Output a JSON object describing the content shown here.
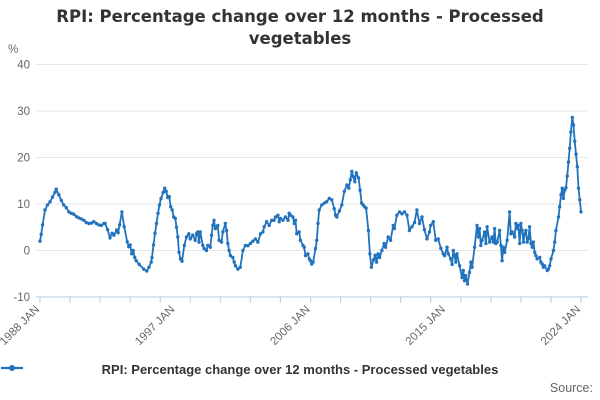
{
  "title": {
    "text": "RPI: Percentage change over 12 months - Processed vegetables"
  },
  "legend": {
    "label": "RPI: Percentage change over 12 months - Processed vegetables"
  },
  "source": {
    "label": "Source:"
  },
  "colors": {
    "line": "#2073bc",
    "grid": "#e6e6e6",
    "axis": "#c3d3e4",
    "title_text": "#333333",
    "label_text": "#666666"
  },
  "y_axis": {
    "unit": "%",
    "ticks": [
      40,
      30,
      20,
      10,
      0,
      -10
    ],
    "min": -10,
    "max": 40
  },
  "x_axis": {
    "labels": [
      "1988 JAN",
      "1997 JAN",
      "2006 JAN",
      "2015 JAN",
      "2024 JAN"
    ],
    "label_years": [
      1988,
      1997,
      2006,
      2015,
      2024
    ],
    "minor_tick_step_years": 2,
    "start_year": 1988,
    "end_year": 2024
  },
  "chart_data": {
    "type": "line",
    "title": "RPI: Percentage change over 12 months - Processed vegetables",
    "xlabel": "",
    "ylabel": "%",
    "ylim": [
      -10,
      40
    ],
    "xlim": [
      1988,
      2024.3
    ],
    "grid": "horizontal",
    "legend_position": "bottom",
    "series_name": "RPI: Percentage change over 12 months - Processed vegetables",
    "points": [
      [
        1988.0,
        2.0
      ],
      [
        1988.08,
        3.5
      ],
      [
        1988.17,
        5.5
      ],
      [
        1988.33,
        8.7
      ],
      [
        1988.5,
        9.8
      ],
      [
        1988.67,
        10.5
      ],
      [
        1988.83,
        11.5
      ],
      [
        1989.0,
        12.5
      ],
      [
        1989.08,
        13.2
      ],
      [
        1989.25,
        12.0
      ],
      [
        1989.42,
        10.8
      ],
      [
        1989.58,
        9.8
      ],
      [
        1989.75,
        9.2
      ],
      [
        1989.92,
        8.3
      ],
      [
        1990.08,
        8.0
      ],
      [
        1990.25,
        7.8
      ],
      [
        1990.42,
        7.3
      ],
      [
        1990.58,
        7.0
      ],
      [
        1990.75,
        6.8
      ],
      [
        1990.92,
        6.5
      ],
      [
        1991.08,
        6.0
      ],
      [
        1991.25,
        5.8
      ],
      [
        1991.42,
        5.9
      ],
      [
        1991.58,
        6.2
      ],
      [
        1991.75,
        5.8
      ],
      [
        1991.92,
        5.5
      ],
      [
        1992.08,
        5.4
      ],
      [
        1992.25,
        5.8
      ],
      [
        1992.33,
        5.8
      ],
      [
        1992.5,
        4.5
      ],
      [
        1992.66,
        2.7
      ],
      [
        1992.8,
        3.7
      ],
      [
        1992.92,
        3.3
      ],
      [
        1993.1,
        4.4
      ],
      [
        1993.2,
        3.8
      ],
      [
        1993.3,
        5.5
      ],
      [
        1993.45,
        8.3
      ],
      [
        1993.6,
        5.1
      ],
      [
        1993.8,
        1.9
      ],
      [
        1993.9,
        0.8
      ],
      [
        1994.0,
        1.2
      ],
      [
        1994.1,
        -0.7
      ],
      [
        1994.2,
        0.0
      ],
      [
        1994.3,
        -1.5
      ],
      [
        1994.4,
        -2.2
      ],
      [
        1994.6,
        -3.0
      ],
      [
        1994.9,
        -4.0
      ],
      [
        1995.1,
        -4.4
      ],
      [
        1995.25,
        -3.6
      ],
      [
        1995.4,
        -2.5
      ],
      [
        1995.45,
        -1.5
      ],
      [
        1995.55,
        1.2
      ],
      [
        1995.65,
        3.7
      ],
      [
        1995.75,
        5.8
      ],
      [
        1995.85,
        8.0
      ],
      [
        1995.95,
        9.8
      ],
      [
        1996.05,
        11.2
      ],
      [
        1996.2,
        12.5
      ],
      [
        1996.3,
        13.4
      ],
      [
        1996.4,
        12.7
      ],
      [
        1996.5,
        11.4
      ],
      [
        1996.6,
        11.6
      ],
      [
        1996.7,
        9.4
      ],
      [
        1996.8,
        8.7
      ],
      [
        1996.9,
        7.2
      ],
      [
        1997.0,
        6.9
      ],
      [
        1997.08,
        5.0
      ],
      [
        1997.17,
        2.9
      ],
      [
        1997.25,
        -0.4
      ],
      [
        1997.35,
        -1.8
      ],
      [
        1997.45,
        -2.3
      ],
      [
        1997.6,
        1.1
      ],
      [
        1997.75,
        2.9
      ],
      [
        1997.9,
        3.6
      ],
      [
        1998.0,
        2.5
      ],
      [
        1998.17,
        3.3
      ],
      [
        1998.33,
        2.2
      ],
      [
        1998.42,
        3.6
      ],
      [
        1998.5,
        4.0
      ],
      [
        1998.58,
        1.8
      ],
      [
        1998.67,
        4.0
      ],
      [
        1998.83,
        1.1
      ],
      [
        1998.92,
        0.4
      ],
      [
        1999.08,
        0.0
      ],
      [
        1999.17,
        1.1
      ],
      [
        1999.33,
        0.7
      ],
      [
        1999.42,
        3.3
      ],
      [
        1999.5,
        5.4
      ],
      [
        1999.58,
        6.5
      ],
      [
        1999.67,
        4.7
      ],
      [
        1999.83,
        5.4
      ],
      [
        1999.92,
        2.2
      ],
      [
        2000.08,
        1.8
      ],
      [
        2000.17,
        4.0
      ],
      [
        2000.33,
        5.8
      ],
      [
        2000.42,
        4.3
      ],
      [
        2000.5,
        1.5
      ],
      [
        2000.58,
        0.0
      ],
      [
        2000.67,
        -1.1
      ],
      [
        2000.83,
        -1.5
      ],
      [
        2000.92,
        -2.5
      ],
      [
        2001.0,
        -3.3
      ],
      [
        2001.17,
        -4.0
      ],
      [
        2001.33,
        -3.6
      ],
      [
        2001.5,
        0.0
      ],
      [
        2001.67,
        1.1
      ],
      [
        2001.83,
        1.0
      ],
      [
        2002.0,
        1.5
      ],
      [
        2002.17,
        2.0
      ],
      [
        2002.33,
        2.5
      ],
      [
        2002.5,
        1.8
      ],
      [
        2002.67,
        3.6
      ],
      [
        2002.83,
        4.0
      ],
      [
        2002.92,
        5.1
      ],
      [
        2003.08,
        6.2
      ],
      [
        2003.25,
        5.4
      ],
      [
        2003.42,
        6.5
      ],
      [
        2003.58,
        6.5
      ],
      [
        2003.67,
        7.2
      ],
      [
        2003.83,
        7.6
      ],
      [
        2003.92,
        6.2
      ],
      [
        2004.0,
        6.9
      ],
      [
        2004.17,
        6.5
      ],
      [
        2004.33,
        7.2
      ],
      [
        2004.5,
        6.5
      ],
      [
        2004.58,
        8.0
      ],
      [
        2004.67,
        7.6
      ],
      [
        2004.83,
        7.2
      ],
      [
        2004.92,
        5.8
      ],
      [
        2005.0,
        6.5
      ],
      [
        2005.08,
        3.6
      ],
      [
        2005.25,
        4.0
      ],
      [
        2005.33,
        2.2
      ],
      [
        2005.5,
        1.1
      ],
      [
        2005.58,
        0.7
      ],
      [
        2005.67,
        -1.1
      ],
      [
        2005.83,
        -0.7
      ],
      [
        2005.92,
        -1.8
      ],
      [
        2006.0,
        -2.2
      ],
      [
        2006.08,
        -2.9
      ],
      [
        2006.17,
        -2.5
      ],
      [
        2006.33,
        0.4
      ],
      [
        2006.42,
        2.2
      ],
      [
        2006.5,
        5.8
      ],
      [
        2006.58,
        8.7
      ],
      [
        2006.75,
        9.8
      ],
      [
        2006.92,
        10.2
      ],
      [
        2007.08,
        10.5
      ],
      [
        2007.25,
        11.2
      ],
      [
        2007.42,
        10.9
      ],
      [
        2007.58,
        9.0
      ],
      [
        2007.67,
        7.6
      ],
      [
        2007.75,
        7.2
      ],
      [
        2007.92,
        8.5
      ],
      [
        2008.08,
        9.8
      ],
      [
        2008.25,
        12.7
      ],
      [
        2008.42,
        14.1
      ],
      [
        2008.55,
        13.4
      ],
      [
        2008.65,
        15.2
      ],
      [
        2008.75,
        17.0
      ],
      [
        2008.85,
        15.9
      ],
      [
        2008.95,
        14.8
      ],
      [
        2009.05,
        16.7
      ],
      [
        2009.2,
        15.6
      ],
      [
        2009.3,
        13.0
      ],
      [
        2009.4,
        10.2
      ],
      [
        2009.5,
        9.8
      ],
      [
        2009.6,
        9.4
      ],
      [
        2009.7,
        9.1
      ],
      [
        2009.85,
        4.3
      ],
      [
        2009.95,
        -0.7
      ],
      [
        2010.05,
        -3.6
      ],
      [
        2010.2,
        -2.0
      ],
      [
        2010.3,
        -1.0
      ],
      [
        2010.4,
        -2.5
      ],
      [
        2010.5,
        -0.7
      ],
      [
        2010.6,
        -1.5
      ],
      [
        2010.75,
        0.0
      ],
      [
        2010.9,
        1.5
      ],
      [
        2011.0,
        0.7
      ],
      [
        2011.17,
        2.9
      ],
      [
        2011.33,
        2.2
      ],
      [
        2011.5,
        5.4
      ],
      [
        2011.58,
        4.7
      ],
      [
        2011.75,
        7.6
      ],
      [
        2011.92,
        8.3
      ],
      [
        2012.08,
        7.9
      ],
      [
        2012.25,
        8.3
      ],
      [
        2012.42,
        7.6
      ],
      [
        2012.58,
        4.3
      ],
      [
        2012.75,
        5.1
      ],
      [
        2012.92,
        6.0
      ],
      [
        2013.08,
        8.7
      ],
      [
        2013.25,
        5.8
      ],
      [
        2013.42,
        7.2
      ],
      [
        2013.58,
        4.5
      ],
      [
        2013.75,
        2.5
      ],
      [
        2013.92,
        4.0
      ],
      [
        2014.0,
        5.4
      ],
      [
        2014.17,
        6.2
      ],
      [
        2014.33,
        2.2
      ],
      [
        2014.5,
        2.5
      ],
      [
        2014.67,
        0.5
      ],
      [
        2014.83,
        -0.7
      ],
      [
        2014.92,
        -1.1
      ],
      [
        2015.08,
        0.7
      ],
      [
        2015.17,
        -0.7
      ],
      [
        2015.33,
        -1.8
      ],
      [
        2015.42,
        -3.0
      ],
      [
        2015.5,
        0.0
      ],
      [
        2015.58,
        -1.1
      ],
      [
        2015.67,
        -2.5
      ],
      [
        2015.75,
        -0.7
      ],
      [
        2015.92,
        -3.3
      ],
      [
        2016.08,
        -5.8
      ],
      [
        2016.17,
        -4.3
      ],
      [
        2016.25,
        -6.5
      ],
      [
        2016.33,
        -5.4
      ],
      [
        2016.45,
        -7.2
      ],
      [
        2016.58,
        -4.7
      ],
      [
        2016.67,
        -2.5
      ],
      [
        2016.75,
        -3.6
      ],
      [
        2016.92,
        0.7
      ],
      [
        2017.08,
        5.4
      ],
      [
        2017.17,
        2.9
      ],
      [
        2017.25,
        4.7
      ],
      [
        2017.33,
        1.1
      ],
      [
        2017.42,
        2.2
      ],
      [
        2017.58,
        4.0
      ],
      [
        2017.67,
        1.5
      ],
      [
        2017.75,
        5.1
      ],
      [
        2017.92,
        1.8
      ],
      [
        2018.08,
        2.9
      ],
      [
        2018.17,
        1.8
      ],
      [
        2018.25,
        4.7
      ],
      [
        2018.33,
        1.5
      ],
      [
        2018.42,
        1.8
      ],
      [
        2018.58,
        4.3
      ],
      [
        2018.67,
        1.1
      ],
      [
        2018.75,
        -2.2
      ],
      [
        2018.83,
        0.7
      ],
      [
        2018.92,
        -0.4
      ],
      [
        2019.08,
        2.2
      ],
      [
        2019.25,
        8.3
      ],
      [
        2019.33,
        3.6
      ],
      [
        2019.42,
        4.0
      ],
      [
        2019.58,
        2.9
      ],
      [
        2019.67,
        5.8
      ],
      [
        2019.75,
        4.7
      ],
      [
        2019.83,
        5.4
      ],
      [
        2019.92,
        1.5
      ],
      [
        2020.0,
        5.8
      ],
      [
        2020.08,
        4.3
      ],
      [
        2020.17,
        1.8
      ],
      [
        2020.25,
        3.6
      ],
      [
        2020.33,
        4.3
      ],
      [
        2020.42,
        1.8
      ],
      [
        2020.5,
        2.5
      ],
      [
        2020.58,
        5.1
      ],
      [
        2020.67,
        1.5
      ],
      [
        2020.75,
        0.7
      ],
      [
        2020.83,
        1.8
      ],
      [
        2020.92,
        -0.4
      ],
      [
        2021.0,
        -1.1
      ],
      [
        2021.08,
        -1.8
      ],
      [
        2021.25,
        -1.5
      ],
      [
        2021.33,
        -2.5
      ],
      [
        2021.42,
        -2.9
      ],
      [
        2021.5,
        -3.6
      ],
      [
        2021.58,
        -3.3
      ],
      [
        2021.75,
        -4.3
      ],
      [
        2021.83,
        -4.0
      ],
      [
        2021.92,
        -3.3
      ],
      [
        2022.0,
        -1.8
      ],
      [
        2022.17,
        0.0
      ],
      [
        2022.25,
        1.8
      ],
      [
        2022.33,
        4.3
      ],
      [
        2022.5,
        7.2
      ],
      [
        2022.58,
        9.4
      ],
      [
        2022.67,
        12.0
      ],
      [
        2022.75,
        13.4
      ],
      [
        2022.83,
        11.2
      ],
      [
        2022.92,
        13.0
      ],
      [
        2023.0,
        13.5
      ],
      [
        2023.08,
        16.0
      ],
      [
        2023.17,
        19.0
      ],
      [
        2023.25,
        22.0
      ],
      [
        2023.33,
        25.5
      ],
      [
        2023.42,
        28.6
      ],
      [
        2023.5,
        27.0
      ],
      [
        2023.58,
        23.5
      ],
      [
        2023.67,
        20.7
      ],
      [
        2023.75,
        18.0
      ],
      [
        2023.83,
        13.4
      ],
      [
        2023.92,
        10.9
      ],
      [
        2024.0,
        8.3
      ]
    ]
  }
}
